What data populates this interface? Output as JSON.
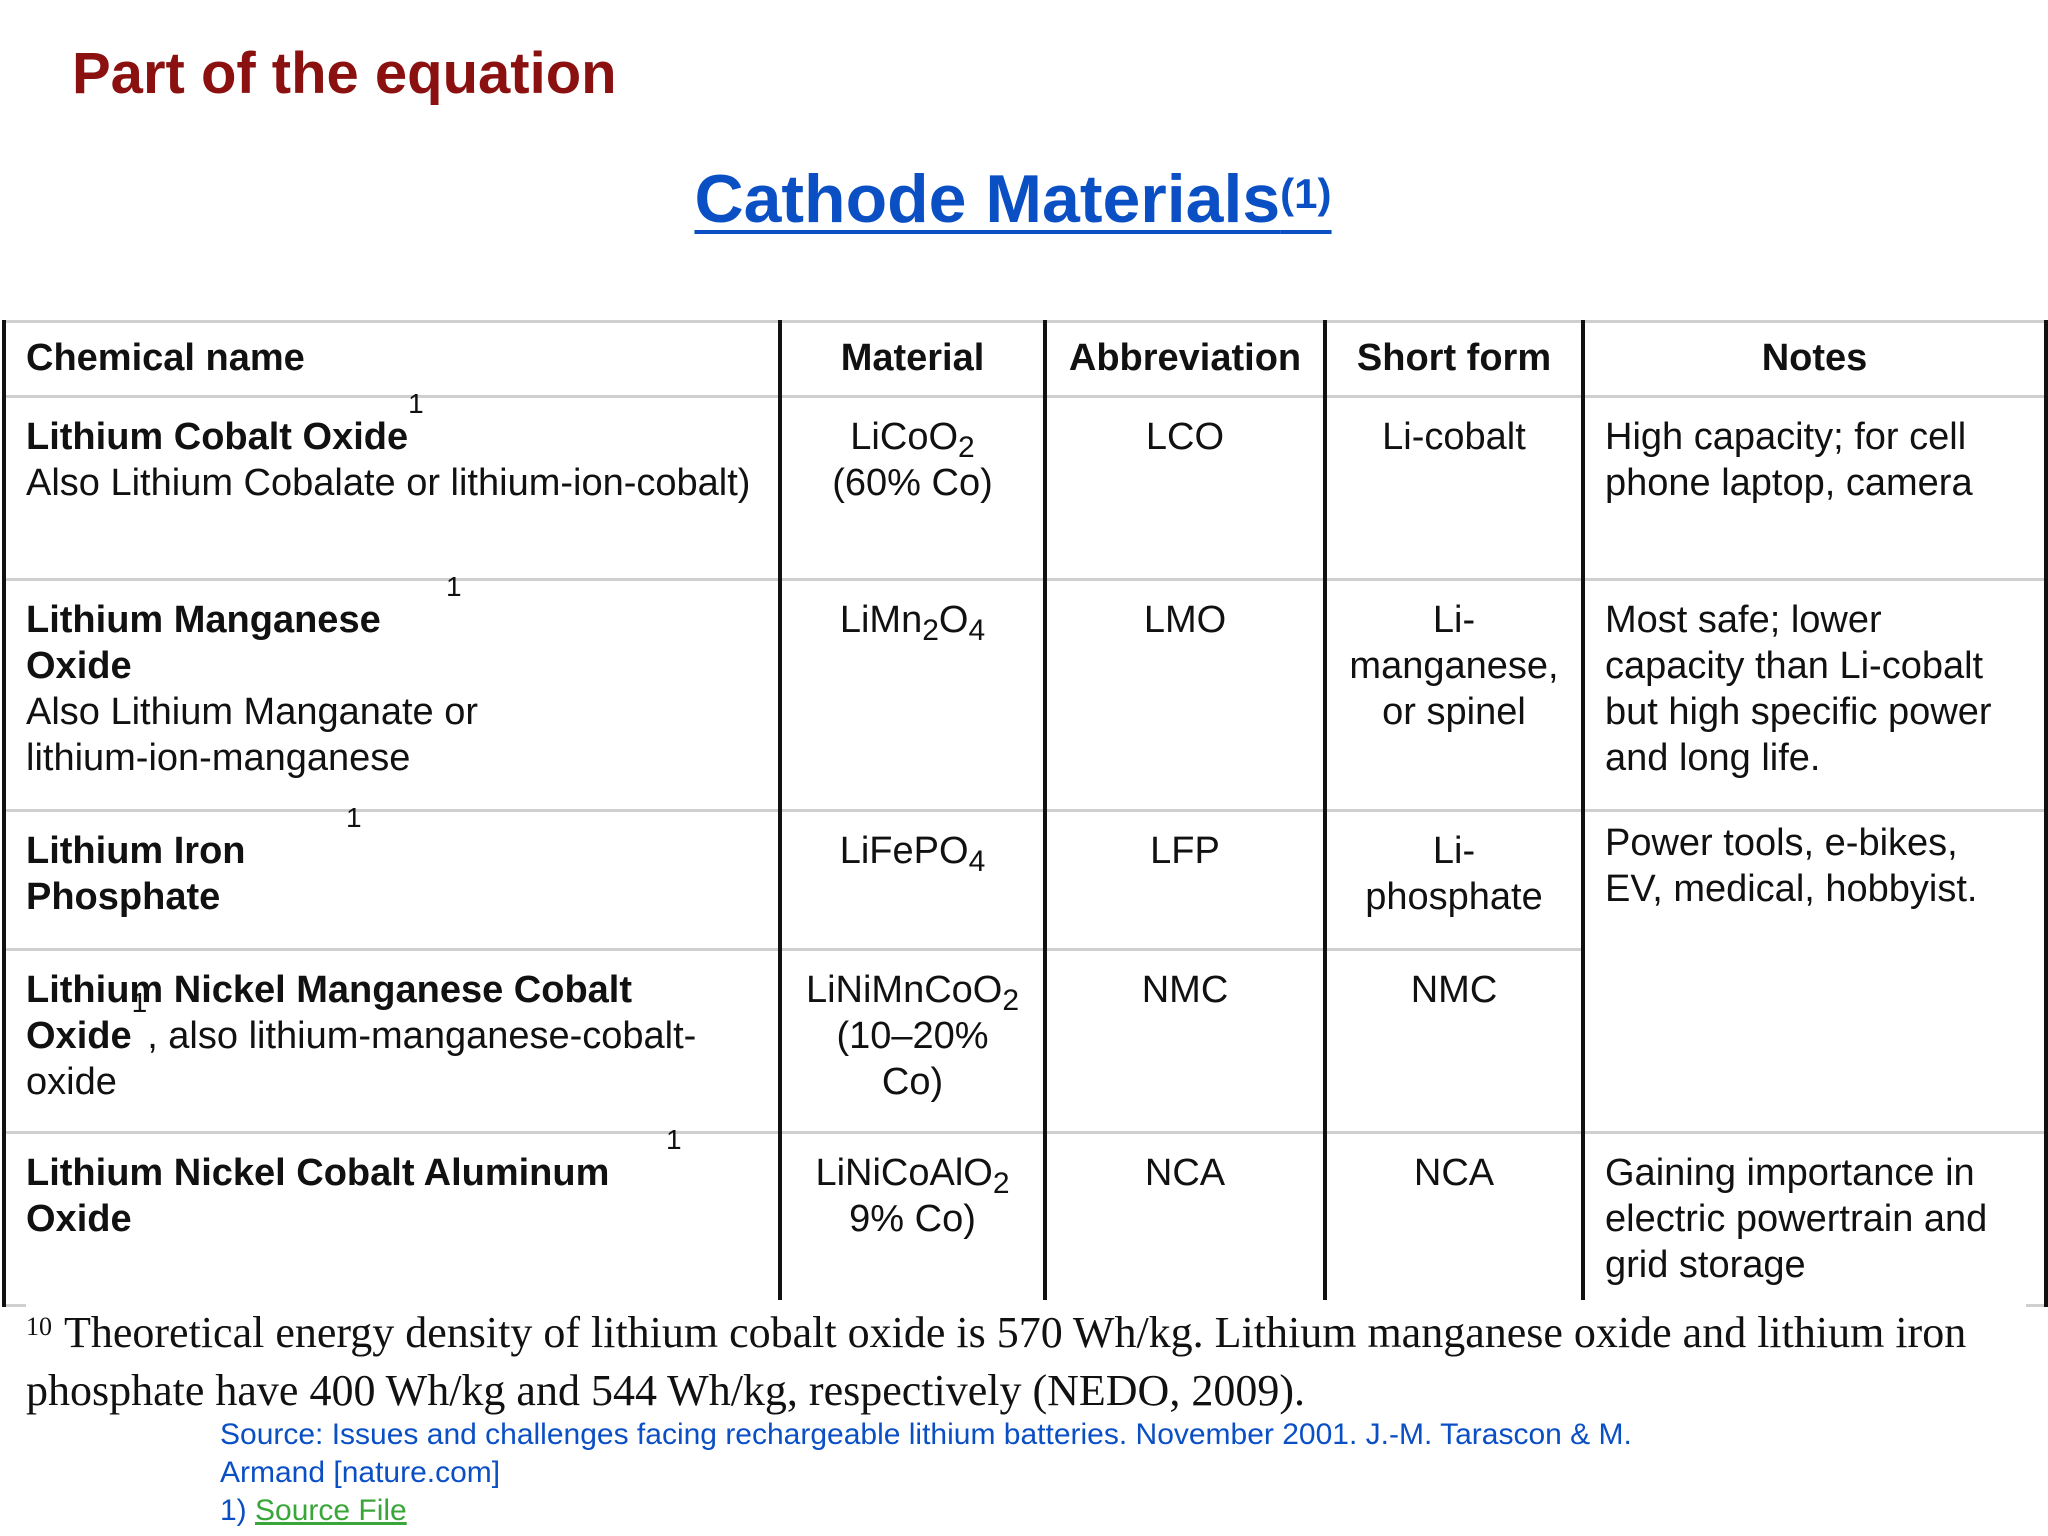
{
  "slide": {
    "title": "Part of the equation"
  },
  "heading": {
    "text": "Cathode Materials",
    "sup": "(1)"
  },
  "table": {
    "headers": [
      "Chemical name",
      "Material",
      "Abbreviation",
      "Short form",
      "Notes"
    ],
    "rows": [
      {
        "name_bold": "Lithium Cobalt Oxide",
        "name_sup": "1",
        "name_rest": "Also Lithium Cobalate or lithium-ion-cobalt)",
        "material_pre": "LiCoO",
        "material_sub": "2",
        "material_post": "",
        "material_line2": "(60% Co)",
        "abbreviation": "LCO",
        "short_form": "Li-cobalt",
        "notes": "High capacity; for cell phone laptop, camera"
      },
      {
        "name_bold": "Lithium Manganese Oxide",
        "name_sup": "1",
        "name_rest": "Also Lithium Manganate or lithium-ion-manganese",
        "material_pre": "LiMn",
        "material_sub": "2",
        "material_post": "O",
        "material_sub2": "4",
        "abbreviation": "LMO",
        "short_form": "Li-manganese, or spinel",
        "notes": "Most safe; lower capacity than Li-cobalt but high specific power and long life."
      },
      {
        "name_bold": "Lithium Iron Phosphate",
        "name_sup": "1",
        "material_pre": "LiFePO",
        "material_sub": "4",
        "abbreviation": "LFP",
        "short_form": "Li-phosphate",
        "notes": "Power tools, e-bikes, EV, medical, hobbyist."
      },
      {
        "name_bold": "Lithium Nickel Manganese Cobalt Oxide",
        "name_sup": "1",
        "name_rest": ", also lithium-manganese-cobalt-oxide",
        "material_pre": "LiNiMnCoO",
        "material_sub": "2",
        "material_line2": "(10–20% Co)",
        "abbreviation": "NMC",
        "short_form": "NMC"
      },
      {
        "name_bold": "Lithium Nickel Cobalt Aluminum Oxide",
        "name_sup": "1",
        "material_pre": "LiNiCoAlO",
        "material_sub": "2",
        "material_line2": "9% Co)",
        "abbreviation": "NCA",
        "short_form": "NCA",
        "notes": "Gaining importance in electric powertrain and grid storage"
      }
    ]
  },
  "footnote": {
    "number": "10",
    "text": "Theoretical energy density of lithium cobalt oxide is 570 Wh/kg. Lithium manganese oxide and lithium iron phosphate have 400 Wh/kg and 544 Wh/kg, respectively (NEDO, 2009)."
  },
  "source": {
    "text": "Source: Issues and challenges facing rechargeable lithium batteries. November 2001. J.-M. Tarascon & M. Armand [nature.com]",
    "ref_prefix": "1) ",
    "link_label": "Source File"
  },
  "colors": {
    "title": "#8b1010",
    "heading": "#0b4fc4",
    "source": "#0b4fc4",
    "link": "#3aa63a"
  }
}
